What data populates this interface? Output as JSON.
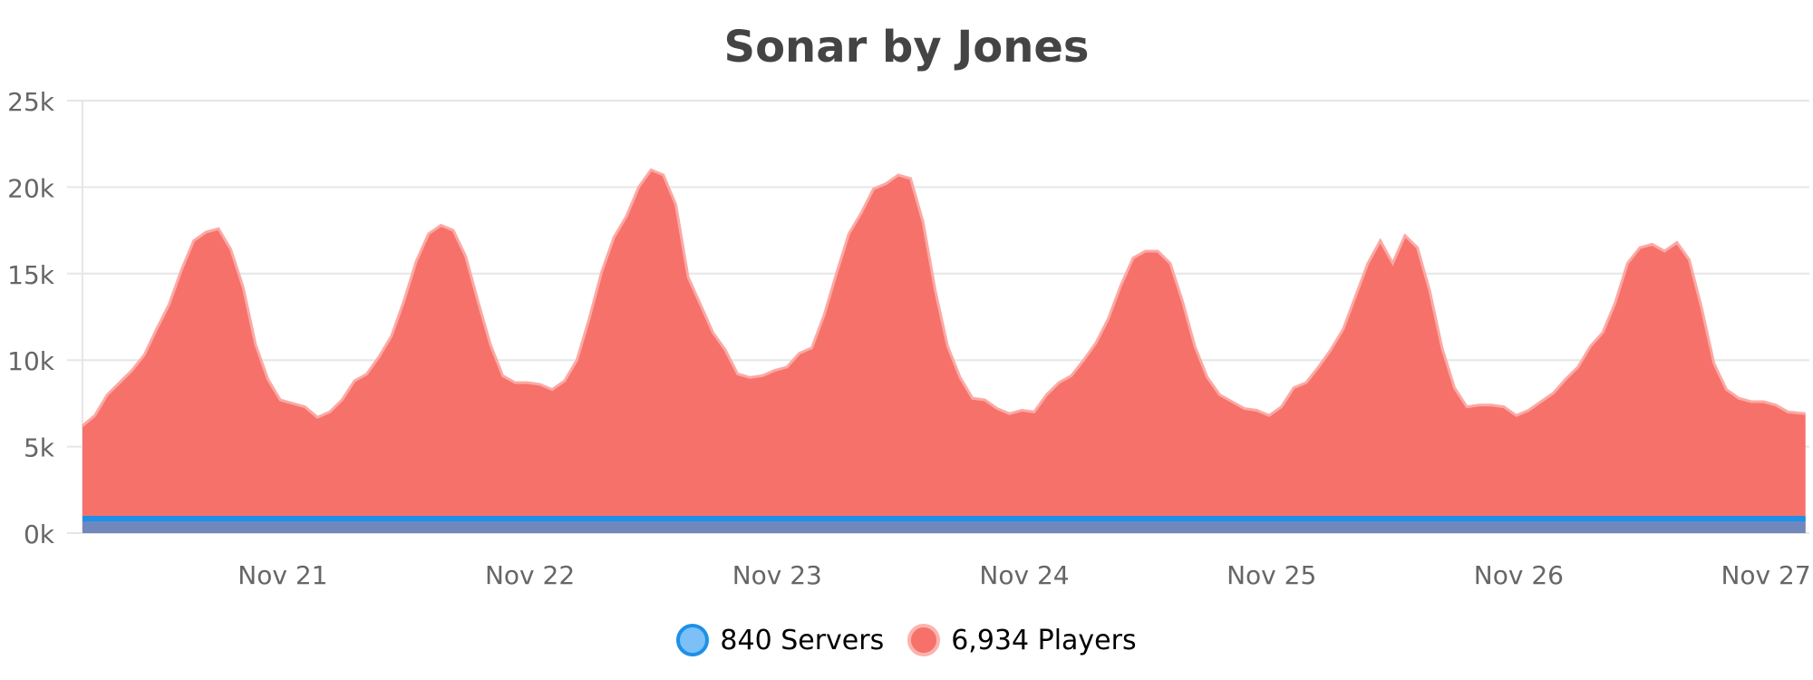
{
  "header": {
    "title": "Sonar by Jones"
  },
  "legend": {
    "items": [
      {
        "label": "840 Servers",
        "fill": "#7cc0f7",
        "stroke": "#1e90e8"
      },
      {
        "label": "6,934 Players",
        "fill": "#f6716a",
        "stroke": "#fbb3ae"
      }
    ]
  },
  "colors": {
    "players_fill": "#f6716a",
    "players_line": "#fba9a4",
    "servers_line": "#1e90e8",
    "overlap_fill": "#6f89bd",
    "grid": "#e6e6e6",
    "axis_text": "#666666"
  },
  "chart_data": {
    "type": "area",
    "title": "Sonar by Jones",
    "xlabel": "",
    "ylabel": "",
    "ylim": [
      0,
      25000
    ],
    "yticks": [
      "0k",
      "5k",
      "10k",
      "15k",
      "20k",
      "25k"
    ],
    "xticks": [
      "Nov 21",
      "Nov 22",
      "Nov 23",
      "Nov 24",
      "Nov 25",
      "Nov 26",
      "Nov 27"
    ],
    "grid": true,
    "legend_position": "bottom",
    "x_unit": "days since start (Nov 20 ~04:00); tick Nov 21 at 0.81",
    "series": [
      {
        "name": "Servers",
        "legend_label": "840 Servers",
        "x": [
          0,
          6.97
        ],
        "values": [
          840,
          840
        ]
      },
      {
        "name": "Players",
        "legend_label": "6,934 Players",
        "x": [
          0.0,
          0.05,
          0.1,
          0.15,
          0.2,
          0.25,
          0.3,
          0.35,
          0.4,
          0.45,
          0.5,
          0.55,
          0.6,
          0.65,
          0.7,
          0.75,
          0.8,
          0.85,
          0.9,
          0.95,
          1.0,
          1.05,
          1.1,
          1.15,
          1.2,
          1.25,
          1.3,
          1.35,
          1.4,
          1.45,
          1.5,
          1.55,
          1.6,
          1.65,
          1.7,
          1.75,
          1.8,
          1.85,
          1.9,
          1.95,
          2.0,
          2.05,
          2.1,
          2.15,
          2.2,
          2.25,
          2.3,
          2.35,
          2.4,
          2.45,
          2.5,
          2.55,
          2.6,
          2.65,
          2.7,
          2.75,
          2.8,
          2.85,
          2.9,
          2.95,
          3.0,
          3.05,
          3.1,
          3.15,
          3.2,
          3.25,
          3.3,
          3.35,
          3.4,
          3.45,
          3.5,
          3.55,
          3.6,
          3.65,
          3.7,
          3.75,
          3.8,
          3.85,
          3.9,
          3.95,
          4.0,
          4.05,
          4.1,
          4.15,
          4.2,
          4.25,
          4.3,
          4.35,
          4.4,
          4.45,
          4.5,
          4.55,
          4.6,
          4.65,
          4.7,
          4.75,
          4.8,
          4.85,
          4.9,
          4.95,
          5.0,
          5.05,
          5.1,
          5.15,
          5.2,
          5.25,
          5.3,
          5.35,
          5.4,
          5.45,
          5.5,
          5.55,
          5.6,
          5.65,
          5.7,
          5.75,
          5.8,
          5.85,
          5.9,
          5.95,
          6.0,
          6.05,
          6.1,
          6.15,
          6.2,
          6.25,
          6.3,
          6.35,
          6.4,
          6.45,
          6.5,
          6.55,
          6.6,
          6.65,
          6.7,
          6.75,
          6.8,
          6.85,
          6.9,
          6.97
        ],
        "values": [
          6200,
          6800,
          8000,
          8700,
          9400,
          10300,
          11800,
          13200,
          15200,
          16900,
          17400,
          17600,
          16400,
          14200,
          10900,
          8900,
          7700,
          7500,
          7300,
          6700,
          7000,
          7700,
          8800,
          9200,
          10200,
          11400,
          13400,
          15700,
          17300,
          17800,
          17500,
          16000,
          13400,
          10900,
          9100,
          8700,
          8700,
          8600,
          8300,
          8800,
          10000,
          12400,
          15100,
          17100,
          18300,
          20000,
          21000,
          20700,
          19000,
          14800,
          13200,
          11600,
          10600,
          9200,
          9000,
          9100,
          9400,
          9600,
          10400,
          10700,
          12600,
          15000,
          17300,
          18500,
          19900,
          20200,
          20700,
          20500,
          18000,
          14000,
          10800,
          9000,
          7800,
          7700,
          7200,
          6900,
          7100,
          7000,
          8000,
          8700,
          9100,
          10000,
          11000,
          12400,
          14300,
          15900,
          16300,
          16300,
          15600,
          13400,
          10800,
          9000,
          8000,
          7600,
          7200,
          7100,
          6800,
          7300,
          8400,
          8700,
          9600,
          10600,
          11800,
          13700,
          15600,
          16900,
          15600,
          17200,
          16500,
          14000,
          10700,
          8400,
          7300,
          7400,
          7400,
          7300,
          6800,
          7100,
          7600,
          8100,
          8900,
          9600,
          10800,
          11600,
          13300,
          15600,
          16500,
          16700,
          16300,
          16800,
          15800,
          13000,
          9800,
          8300,
          7800,
          7600,
          7600,
          7400,
          7000,
          6900
        ]
      }
    ]
  }
}
